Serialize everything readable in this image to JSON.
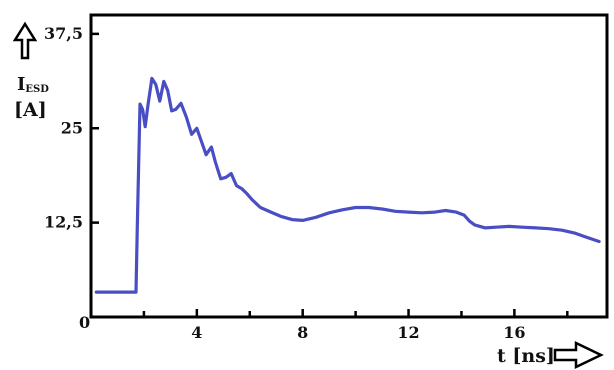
{
  "chart_data": {
    "type": "line",
    "title": "",
    "ylabel_main": "I",
    "ylabel_sub": "ESD",
    "ylabel_unit": "[A]",
    "xlabel": "t [ns]",
    "xlim": [
      0,
      19.5
    ],
    "ylim": [
      0,
      40
    ],
    "x_ticks": [
      {
        "value": 4,
        "label": "4"
      },
      {
        "value": 8,
        "label": "8"
      },
      {
        "value": 12,
        "label": "12"
      },
      {
        "value": 16,
        "label": "16"
      }
    ],
    "y_ticks": [
      {
        "value": 12.5,
        "label": "12,5"
      },
      {
        "value": 25,
        "label": "25"
      },
      {
        "value": 37.5,
        "label": "37,5"
      }
    ],
    "origin_label": "0",
    "grid": false,
    "line_color": "#4a4ec4",
    "series": [
      {
        "x": [
          0.2,
          1.7,
          1.75,
          1.85,
          1.95,
          2.05,
          2.15,
          2.3,
          2.45,
          2.6,
          2.75,
          2.9,
          3.05,
          3.2,
          3.4,
          3.6,
          3.8,
          4.0,
          4.15,
          4.35,
          4.55,
          4.7,
          4.9,
          5.1,
          5.3,
          5.5,
          5.7,
          5.9,
          6.1,
          6.4,
          6.8,
          7.2,
          7.6,
          8.0,
          8.5,
          9.0,
          9.5,
          10.0,
          10.5,
          11.0,
          11.5,
          12.0,
          12.5,
          13.0,
          13.4,
          13.8,
          14.1,
          14.3,
          14.5,
          14.9,
          15.3,
          15.8,
          16.3,
          16.8,
          17.3,
          17.8,
          18.3,
          18.7,
          19.2
        ],
        "y": [
          3.3,
          3.3,
          12,
          28.2,
          27.5,
          25.2,
          28.0,
          31.6,
          30.8,
          28.6,
          31.2,
          30.0,
          27.3,
          27.5,
          28.3,
          26.5,
          24.2,
          25.0,
          23.5,
          21.5,
          22.5,
          20.5,
          18.3,
          18.5,
          19.0,
          17.4,
          17.0,
          16.3,
          15.5,
          14.5,
          13.9,
          13.3,
          12.9,
          12.8,
          13.2,
          13.8,
          14.2,
          14.5,
          14.5,
          14.3,
          14.0,
          13.9,
          13.8,
          13.9,
          14.1,
          13.9,
          13.5,
          12.7,
          12.2,
          11.8,
          11.9,
          12.0,
          11.9,
          11.8,
          11.7,
          11.5,
          11.1,
          10.6,
          10.0
        ]
      }
    ]
  }
}
